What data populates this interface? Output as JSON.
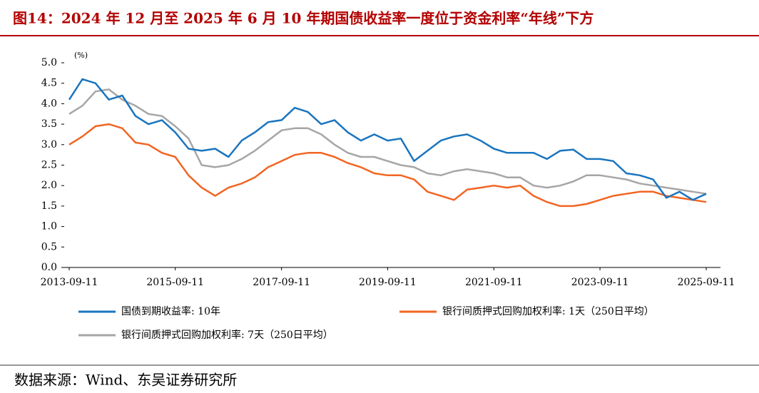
{
  "chart_data": {
    "type": "line",
    "title": "图14：2024 年 12 月至 2025 年 6 月 10 年期国债收益率一度位于资金利率“年线”下方",
    "y_unit": "(%)",
    "source": "数据来源：Wind、东吴证券研究所",
    "x": [
      "2013-09-11",
      "2013-12-11",
      "2014-03-11",
      "2014-06-11",
      "2014-09-11",
      "2014-12-11",
      "2015-03-11",
      "2015-06-11",
      "2015-09-11",
      "2015-12-11",
      "2016-03-11",
      "2016-06-11",
      "2016-09-11",
      "2016-12-11",
      "2017-03-11",
      "2017-06-11",
      "2017-09-11",
      "2017-12-11",
      "2018-03-11",
      "2018-06-11",
      "2018-09-11",
      "2018-12-11",
      "2019-03-11",
      "2019-06-11",
      "2019-09-11",
      "2019-12-11",
      "2020-03-11",
      "2020-06-11",
      "2020-09-11",
      "2020-12-11",
      "2021-03-11",
      "2021-06-11",
      "2021-09-11",
      "2021-12-11",
      "2022-03-11",
      "2022-06-11",
      "2022-09-11",
      "2022-12-11",
      "2023-03-11",
      "2023-06-11",
      "2023-09-11",
      "2023-12-11",
      "2024-03-11",
      "2024-06-11",
      "2024-09-11",
      "2024-12-11",
      "2025-03-11",
      "2025-06-11",
      "2025-09-11"
    ],
    "series": [
      {
        "name": "国债到期收益率: 10年",
        "color": "#1a75bf",
        "values": [
          4.1,
          4.6,
          4.5,
          4.1,
          4.2,
          3.7,
          3.5,
          3.6,
          3.3,
          2.9,
          2.85,
          2.9,
          2.7,
          3.1,
          3.3,
          3.55,
          3.6,
          3.9,
          3.8,
          3.5,
          3.6,
          3.3,
          3.1,
          3.25,
          3.1,
          3.15,
          2.6,
          2.85,
          3.1,
          3.2,
          3.25,
          3.1,
          2.9,
          2.8,
          2.8,
          2.8,
          2.65,
          2.85,
          2.88,
          2.65,
          2.65,
          2.6,
          2.3,
          2.25,
          2.15,
          1.7,
          1.85,
          1.65,
          1.8
        ]
      },
      {
        "name": "银行间质押式回购加权利率: 1天（250日平均）",
        "color": "#f26522",
        "values": [
          3.0,
          3.2,
          3.45,
          3.5,
          3.4,
          3.05,
          3.0,
          2.8,
          2.7,
          2.25,
          1.95,
          1.75,
          1.95,
          2.05,
          2.2,
          2.45,
          2.6,
          2.75,
          2.8,
          2.8,
          2.7,
          2.55,
          2.45,
          2.3,
          2.25,
          2.25,
          2.15,
          1.85,
          1.75,
          1.65,
          1.9,
          1.95,
          2.0,
          1.95,
          2.0,
          1.75,
          1.6,
          1.5,
          1.5,
          1.55,
          1.65,
          1.75,
          1.8,
          1.85,
          1.85,
          1.75,
          1.7,
          1.65,
          1.6
        ]
      },
      {
        "name": "银行间质押式回购加权利率: 7天（250日平均）",
        "color": "#a6a6a6",
        "values": [
          3.75,
          3.95,
          4.3,
          4.35,
          4.1,
          3.95,
          3.75,
          3.7,
          3.45,
          3.15,
          2.5,
          2.45,
          2.5,
          2.65,
          2.85,
          3.1,
          3.35,
          3.4,
          3.4,
          3.25,
          3.0,
          2.8,
          2.7,
          2.7,
          2.6,
          2.5,
          2.45,
          2.3,
          2.25,
          2.35,
          2.4,
          2.35,
          2.3,
          2.2,
          2.2,
          2.0,
          1.95,
          2.0,
          2.1,
          2.25,
          2.25,
          2.2,
          2.15,
          2.05,
          2.0,
          1.95,
          1.9,
          1.85,
          1.8
        ]
      }
    ],
    "xlim": [
      "2013-09-11",
      "2025-09-11"
    ],
    "xticks": [
      "2013-09-11",
      "2015-09-11",
      "2017-09-11",
      "2019-09-11",
      "2021-09-11",
      "2023-09-11",
      "2025-09-11"
    ],
    "ylim": [
      0,
      5
    ],
    "yticks": [
      {
        "value": 0,
        "label": "0.0"
      },
      {
        "value": 0.5,
        "label": "0.5"
      },
      {
        "value": 1,
        "label": "1.0"
      },
      {
        "value": 1.5,
        "label": "1.5"
      },
      {
        "value": 2,
        "label": "2.0"
      },
      {
        "value": 2.5,
        "label": "2.5"
      },
      {
        "value": 3,
        "label": "3.0"
      },
      {
        "value": 3.5,
        "label": "3.5"
      },
      {
        "value": 4,
        "label": "4.0"
      },
      {
        "value": 4.5,
        "label": "4.5"
      },
      {
        "value": 5,
        "label": "5.0"
      }
    ],
    "grid": false
  }
}
